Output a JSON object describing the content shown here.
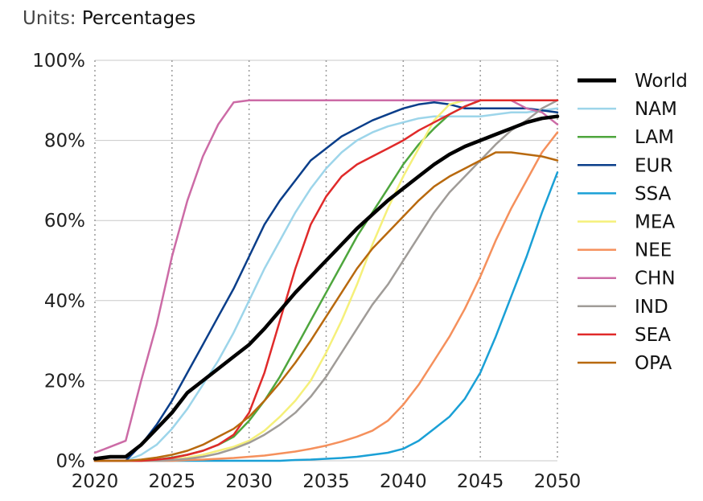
{
  "units": {
    "label": "Units:",
    "value": "Percentages"
  },
  "chart_data": {
    "type": "line",
    "xlim": [
      2020,
      2050
    ],
    "ylim": [
      0,
      100
    ],
    "x_ticks": [
      2020,
      2025,
      2030,
      2035,
      2040,
      2045,
      2050
    ],
    "y_ticks": [
      0,
      20,
      40,
      60,
      80,
      100
    ],
    "y_tick_labels": [
      "0%",
      "20%",
      "40%",
      "60%",
      "80%",
      "100%"
    ],
    "grid": {
      "x": "dotted",
      "y": "solid"
    },
    "legend_position": "right",
    "series": [
      {
        "name": "World",
        "color": "#000000",
        "width": 4.5,
        "x": [
          2020,
          2021,
          2022,
          2023,
          2024,
          2025,
          2026,
          2027,
          2028,
          2029,
          2030,
          2031,
          2032,
          2033,
          2034,
          2035,
          2036,
          2037,
          2038,
          2039,
          2040,
          2041,
          2042,
          2043,
          2044,
          2045,
          2046,
          2047,
          2048,
          2049,
          2050
        ],
        "values": [
          0.5,
          1,
          1,
          4,
          8,
          12,
          17,
          20,
          23,
          26,
          29,
          33,
          37.5,
          42,
          46,
          50,
          54,
          58,
          61.5,
          65,
          68,
          71,
          74,
          76.5,
          78.5,
          80,
          81.5,
          83,
          84.5,
          85.5,
          86
        ]
      },
      {
        "name": "NAM",
        "color": "#9dd5ea",
        "width": 2.5,
        "x": [
          2020,
          2021,
          2022,
          2023,
          2024,
          2025,
          2026,
          2027,
          2028,
          2029,
          2030,
          2031,
          2032,
          2033,
          2034,
          2035,
          2036,
          2037,
          2038,
          2039,
          2040,
          2041,
          2042,
          2043,
          2044,
          2045,
          2046,
          2047,
          2048,
          2049,
          2050
        ],
        "values": [
          0,
          0,
          0,
          1.5,
          4,
          8,
          13,
          19,
          25,
          32,
          40,
          48,
          55,
          62,
          68,
          73,
          77,
          80,
          82,
          83.5,
          84.5,
          85.5,
          86,
          86,
          86,
          86,
          86.5,
          87,
          87,
          87.5,
          88
        ]
      },
      {
        "name": "LAM",
        "color": "#4ea63d",
        "width": 2.5,
        "x": [
          2020,
          2021,
          2022,
          2023,
          2024,
          2025,
          2026,
          2027,
          2028,
          2029,
          2030,
          2031,
          2032,
          2033,
          2034,
          2035,
          2036,
          2037,
          2038,
          2039,
          2040,
          2041,
          2042,
          2043,
          2044,
          2045,
          2046,
          2047,
          2048,
          2049,
          2050
        ],
        "values": [
          0,
          0,
          0,
          0,
          0.3,
          0.8,
          1.5,
          2.5,
          4,
          6,
          10,
          15,
          21,
          28,
          35,
          42,
          49,
          56,
          62,
          68,
          74,
          79,
          83,
          86.5,
          88.5,
          90,
          90,
          90,
          90,
          90,
          90
        ]
      },
      {
        "name": "EUR",
        "color": "#0a3e8a",
        "width": 2.5,
        "x": [
          2020,
          2021,
          2022,
          2023,
          2024,
          2025,
          2026,
          2027,
          2028,
          2029,
          2030,
          2031,
          2032,
          2033,
          2034,
          2035,
          2036,
          2037,
          2038,
          2039,
          2040,
          2041,
          2042,
          2043,
          2044,
          2045,
          2046,
          2047,
          2048,
          2049,
          2050
        ],
        "values": [
          0,
          0,
          0,
          4,
          9,
          15,
          22,
          29,
          36,
          43,
          51,
          59,
          65,
          70,
          75,
          78,
          81,
          83,
          85,
          86.5,
          88,
          89,
          89.5,
          89,
          88,
          88,
          88,
          88,
          88,
          87.5,
          87
        ]
      },
      {
        "name": "SSA",
        "color": "#1aa0d6",
        "width": 2.5,
        "x": [
          2020,
          2021,
          2022,
          2023,
          2024,
          2025,
          2026,
          2027,
          2028,
          2029,
          2030,
          2031,
          2032,
          2033,
          2034,
          2035,
          2036,
          2037,
          2038,
          2039,
          2040,
          2041,
          2042,
          2043,
          2044,
          2045,
          2046,
          2047,
          2048,
          2049,
          2050
        ],
        "values": [
          0,
          0,
          0,
          0,
          0,
          0,
          0,
          0,
          0,
          0,
          0,
          0,
          0,
          0.2,
          0.3,
          0.5,
          0.7,
          1,
          1.5,
          2,
          3,
          5,
          8,
          11,
          15.5,
          22,
          31,
          41,
          51,
          62,
          72
        ]
      },
      {
        "name": "MEA",
        "color": "#f5f07a",
        "width": 2.5,
        "x": [
          2020,
          2021,
          2022,
          2023,
          2024,
          2025,
          2026,
          2027,
          2028,
          2029,
          2030,
          2031,
          2032,
          2033,
          2034,
          2035,
          2036,
          2037,
          2038,
          2039,
          2040,
          2041,
          2042,
          2043,
          2044,
          2045,
          2046,
          2047,
          2048,
          2049,
          2050
        ],
        "values": [
          0,
          0,
          0,
          0,
          0,
          0.3,
          0.8,
          1.5,
          2.5,
          3.5,
          5,
          7.5,
          11,
          15,
          20,
          27,
          35,
          44,
          54,
          63,
          71,
          78,
          85,
          89,
          90,
          90,
          90,
          90,
          90,
          90,
          90
        ]
      },
      {
        "name": "NEE",
        "color": "#f5905c",
        "width": 2.5,
        "x": [
          2020,
          2021,
          2022,
          2023,
          2024,
          2025,
          2026,
          2027,
          2028,
          2029,
          2030,
          2031,
          2032,
          2033,
          2034,
          2035,
          2036,
          2037,
          2038,
          2039,
          2040,
          2041,
          2042,
          2043,
          2044,
          2045,
          2046,
          2047,
          2048,
          2049,
          2050
        ],
        "values": [
          0,
          0,
          0,
          0,
          0,
          0,
          0.2,
          0.3,
          0.5,
          0.7,
          1,
          1.3,
          1.8,
          2.3,
          3,
          3.8,
          4.8,
          6,
          7.5,
          10,
          14,
          19,
          25,
          31,
          38,
          46,
          55,
          63,
          70,
          77,
          82
        ]
      },
      {
        "name": "CHN",
        "color": "#cc6ba6",
        "width": 2.5,
        "x": [
          2020,
          2021,
          2022,
          2023,
          2024,
          2025,
          2026,
          2027,
          2028,
          2029,
          2030,
          2031,
          2032,
          2033,
          2034,
          2035,
          2036,
          2037,
          2038,
          2039,
          2040,
          2041,
          2042,
          2043,
          2044,
          2045,
          2046,
          2047,
          2048,
          2049,
          2050
        ],
        "values": [
          2,
          3.5,
          5,
          20,
          34,
          51,
          65,
          76,
          84,
          89.5,
          90,
          90,
          90,
          90,
          90,
          90,
          90,
          90,
          90,
          90,
          90,
          90,
          90,
          90,
          90,
          90,
          90,
          90,
          88,
          87,
          84
        ]
      },
      {
        "name": "IND",
        "color": "#a09c98",
        "width": 2.5,
        "x": [
          2020,
          2021,
          2022,
          2023,
          2024,
          2025,
          2026,
          2027,
          2028,
          2029,
          2030,
          2031,
          2032,
          2033,
          2034,
          2035,
          2036,
          2037,
          2038,
          2039,
          2040,
          2041,
          2042,
          2043,
          2044,
          2045,
          2046,
          2047,
          2048,
          2049,
          2050
        ],
        "values": [
          0,
          0,
          0,
          0,
          0,
          0.2,
          0.5,
          1,
          1.8,
          3,
          4.5,
          6.5,
          9,
          12,
          16,
          21,
          27,
          33,
          39,
          44,
          50,
          56,
          62,
          67,
          71,
          75,
          79,
          82.5,
          85,
          88,
          90
        ]
      },
      {
        "name": "SEA",
        "color": "#e02a2a",
        "width": 2.5,
        "x": [
          2020,
          2021,
          2022,
          2023,
          2024,
          2025,
          2026,
          2027,
          2028,
          2029,
          2030,
          2031,
          2032,
          2033,
          2034,
          2035,
          2036,
          2037,
          2038,
          2039,
          2040,
          2041,
          2042,
          2043,
          2044,
          2045,
          2046,
          2047,
          2048,
          2049,
          2050
        ],
        "values": [
          0,
          0,
          0,
          0,
          0.3,
          0.7,
          1.5,
          2.5,
          4,
          6.5,
          12,
          22,
          35,
          48,
          59,
          66,
          71,
          74,
          76,
          78,
          80,
          82.5,
          84.5,
          86.5,
          88.5,
          90,
          90,
          90,
          90,
          90,
          90
        ]
      },
      {
        "name": "OPA",
        "color": "#b8690e",
        "width": 2.5,
        "x": [
          2020,
          2021,
          2022,
          2023,
          2024,
          2025,
          2026,
          2027,
          2028,
          2029,
          2030,
          2031,
          2032,
          2033,
          2034,
          2035,
          2036,
          2037,
          2038,
          2039,
          2040,
          2041,
          2042,
          2043,
          2044,
          2045,
          2046,
          2047,
          2048,
          2049,
          2050
        ],
        "values": [
          0,
          0,
          0,
          0.3,
          0.8,
          1.5,
          2.5,
          4,
          6,
          8,
          11,
          15,
          19.5,
          24.5,
          30,
          36,
          42,
          48,
          53,
          57,
          61,
          65,
          68.5,
          71,
          73,
          75,
          77,
          77,
          76.5,
          76,
          75
        ]
      }
    ]
  }
}
